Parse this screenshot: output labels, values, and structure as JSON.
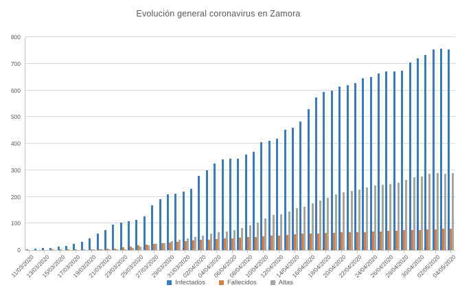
{
  "title": "Evolución general coronavirus en Zamora",
  "legend": {
    "position": "bottom",
    "items": [
      {
        "label": "Infectados",
        "color": "#3a7abf"
      },
      {
        "label": "Fallecidos",
        "color": "#d97e3c"
      },
      {
        "label": "Altas",
        "color": "#a6a6a6"
      }
    ]
  },
  "y_axis": {
    "min": 0,
    "max": 800,
    "step": 100,
    "tick_labels": [
      "0",
      "100",
      "200",
      "300",
      "400",
      "500",
      "600",
      "700",
      "800"
    ]
  },
  "x_axis": {
    "tick_every": 2,
    "tick_labels": [
      "11/03/2020",
      "13/03/2020",
      "15/03/2020",
      "17/03/2020",
      "19/03/2020",
      "21/03/2020",
      "23/03/2020",
      "25/03/2020",
      "27/03/2020",
      "29/03/2020",
      "31/03/2020",
      "02/04/2020",
      "04/04/2020",
      "06/04/2020",
      "08/04/2020",
      "10/04/2020",
      "12/04/2020",
      "14/04/2020",
      "16/04/2020",
      "18/04/2020",
      "20/04/2020",
      "22/04/2020",
      "24/04/2020",
      "26/04/2020",
      "28/04/2020",
      "30/04/2020",
      "02/05/2020",
      "04/05/2020"
    ]
  },
  "chart_data": {
    "type": "bar",
    "title": "Evolución general coronavirus en Zamora",
    "xlabel": "",
    "ylabel": "",
    "ylim": [
      0,
      800
    ],
    "grid": true,
    "legend_position": "bottom",
    "categories": [
      "11/03/2020",
      "12/03/2020",
      "13/03/2020",
      "14/03/2020",
      "15/03/2020",
      "16/03/2020",
      "17/03/2020",
      "18/03/2020",
      "19/03/2020",
      "20/03/2020",
      "21/03/2020",
      "22/03/2020",
      "23/03/2020",
      "24/03/2020",
      "25/03/2020",
      "26/03/2020",
      "27/03/2020",
      "28/03/2020",
      "29/03/2020",
      "30/03/2020",
      "31/03/2020",
      "01/04/2020",
      "02/04/2020",
      "03/04/2020",
      "04/04/2020",
      "05/04/2020",
      "06/04/2020",
      "07/04/2020",
      "08/04/2020",
      "09/04/2020",
      "10/04/2020",
      "11/04/2020",
      "12/04/2020",
      "13/04/2020",
      "14/04/2020",
      "15/04/2020",
      "16/04/2020",
      "17/04/2020",
      "18/04/2020",
      "19/04/2020",
      "20/04/2020",
      "21/04/2020",
      "22/04/2020",
      "23/04/2020",
      "24/04/2020",
      "25/04/2020",
      "26/04/2020",
      "27/04/2020",
      "28/04/2020",
      "29/04/2020",
      "30/04/2020",
      "01/05/2020",
      "02/05/2020",
      "03/05/2020",
      "04/05/2020"
    ],
    "series": [
      {
        "name": "Infectados",
        "color": "#3a7abf",
        "values": [
          3,
          4,
          8,
          9,
          13,
          15,
          22,
          30,
          45,
          62,
          76,
          95,
          102,
          109,
          113,
          126,
          168,
          190,
          210,
          212,
          219,
          230,
          280,
          300,
          325,
          340,
          342,
          343,
          360,
          369,
          406,
          410,
          417,
          452,
          460,
          483,
          530,
          574,
          594,
          600,
          614,
          619,
          627,
          646,
          651,
          662,
          670,
          672,
          674,
          705,
          719,
          733,
          753,
          756,
          754
        ]
      },
      {
        "name": "Fallecidos",
        "color": "#d97e3c",
        "values": [
          0,
          0,
          0,
          1,
          1,
          1,
          1,
          2,
          2,
          3,
          4,
          6,
          10,
          14,
          18,
          21,
          23,
          26,
          28,
          30,
          33,
          36,
          38,
          40,
          42,
          44,
          45,
          46,
          48,
          50,
          52,
          53,
          55,
          58,
          60,
          61,
          62,
          63,
          64,
          65,
          66,
          66,
          67,
          68,
          69,
          71,
          72,
          73,
          74,
          75,
          76,
          77,
          78,
          79,
          80
        ]
      },
      {
        "name": "Altas",
        "color": "#a6a6a6",
        "values": [
          0,
          0,
          0,
          0,
          0,
          0,
          0,
          0,
          1,
          1,
          2,
          2,
          3,
          8,
          13,
          19,
          22,
          25,
          33,
          39,
          44,
          49,
          55,
          62,
          66,
          70,
          75,
          83,
          92,
          102,
          120,
          131,
          135,
          145,
          157,
          163,
          176,
          185,
          195,
          210,
          218,
          221,
          227,
          234,
          242,
          245,
          247,
          254,
          264,
          273,
          277,
          286,
          288,
          286,
          288
        ]
      }
    ]
  }
}
